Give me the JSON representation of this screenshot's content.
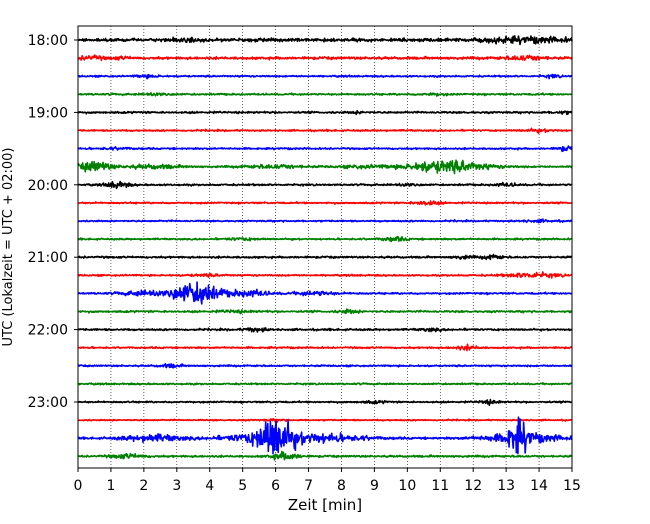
{
  "chart_data": {
    "type": "line",
    "chart_kind": "helicorder",
    "xlabel": "Zeit  [min]",
    "ylabel": "UTC (Lokalzeit = UTC + 02:00)",
    "xlim": [
      0,
      15
    ],
    "x_ticks": [
      0,
      1,
      2,
      3,
      4,
      5,
      6,
      7,
      8,
      9,
      10,
      11,
      12,
      13,
      14,
      15
    ],
    "y_tick_labels": [
      "18:00",
      "19:00",
      "20:00",
      "21:00",
      "22:00",
      "23:00"
    ],
    "y_range": [
      "18:00",
      "24:00"
    ],
    "trace_interval_min": 15,
    "trace_color_cycle": [
      "#000000",
      "#ff0000",
      "#0000ff",
      "#008000"
    ],
    "vertical_gridlines": "dotted, every minute",
    "traces": [
      {
        "start": "18:00",
        "color": "black",
        "base_amp": 0.24,
        "events": [
          {
            "t": 13.6,
            "amp": 0.35,
            "width": 1.4
          },
          {
            "t": 3.3,
            "amp": 0.12,
            "width": 0.5
          }
        ]
      },
      {
        "start": "18:15",
        "color": "red",
        "base_amp": 0.18,
        "events": [
          {
            "t": 0.4,
            "amp": 0.28,
            "width": 0.35
          },
          {
            "t": 13.6,
            "amp": 0.3,
            "width": 0.6
          },
          {
            "t": 1.3,
            "amp": 0.15,
            "width": 0.3
          }
        ]
      },
      {
        "start": "18:30",
        "color": "blue",
        "base_amp": 0.12,
        "events": [
          {
            "t": 2.1,
            "amp": 0.2,
            "width": 0.35
          },
          {
            "t": 14.4,
            "amp": 0.2,
            "width": 0.25
          }
        ]
      },
      {
        "start": "18:45",
        "color": "green",
        "base_amp": 0.13,
        "events": [
          {
            "t": 2.4,
            "amp": 0.25,
            "width": 0.35
          },
          {
            "t": 10.8,
            "amp": 0.15,
            "width": 0.4
          }
        ]
      },
      {
        "start": "19:00",
        "color": "black",
        "base_amp": 0.14,
        "events": [
          {
            "t": 14.7,
            "amp": 0.2,
            "width": 0.3
          },
          {
            "t": 8.5,
            "amp": 0.12,
            "width": 0.3
          }
        ]
      },
      {
        "start": "19:15",
        "color": "red",
        "base_amp": 0.12,
        "events": [
          {
            "t": 14.0,
            "amp": 0.2,
            "width": 0.5
          }
        ]
      },
      {
        "start": "19:30",
        "color": "blue",
        "base_amp": 0.12,
        "events": [
          {
            "t": 14.8,
            "amp": 0.35,
            "width": 0.25
          },
          {
            "t": 1.2,
            "amp": 0.12,
            "width": 0.5
          }
        ]
      },
      {
        "start": "19:45",
        "color": "green",
        "base_amp": 0.13,
        "events": [
          {
            "t": 0.5,
            "amp": 0.75,
            "width": 0.5
          },
          {
            "t": 2.3,
            "amp": 0.3,
            "width": 0.8
          },
          {
            "t": 6.0,
            "amp": 0.25,
            "width": 0.9
          },
          {
            "t": 8.7,
            "amp": 0.2,
            "width": 0.7
          },
          {
            "t": 11.2,
            "amp": 0.95,
            "width": 1.2
          }
        ]
      },
      {
        "start": "20:00",
        "color": "black",
        "base_amp": 0.13,
        "events": [
          {
            "t": 1.2,
            "amp": 0.45,
            "width": 0.35
          },
          {
            "t": 10.0,
            "amp": 0.25,
            "width": 0.3
          },
          {
            "t": 13.0,
            "amp": 0.2,
            "width": 0.4
          }
        ]
      },
      {
        "start": "20:15",
        "color": "red",
        "base_amp": 0.12,
        "events": [
          {
            "t": 10.6,
            "amp": 0.3,
            "width": 0.4
          }
        ]
      },
      {
        "start": "20:30",
        "color": "blue",
        "base_amp": 0.12,
        "events": [
          {
            "t": 14.0,
            "amp": 0.15,
            "width": 0.5
          }
        ]
      },
      {
        "start": "20:45",
        "color": "green",
        "base_amp": 0.12,
        "events": [
          {
            "t": 9.6,
            "amp": 0.3,
            "width": 0.4
          },
          {
            "t": 5.0,
            "amp": 0.15,
            "width": 0.5
          }
        ]
      },
      {
        "start": "21:00",
        "color": "black",
        "base_amp": 0.14,
        "events": [
          {
            "t": 11.7,
            "amp": 0.2,
            "width": 0.3
          },
          {
            "t": 12.6,
            "amp": 0.3,
            "width": 0.3
          }
        ]
      },
      {
        "start": "21:15",
        "color": "red",
        "base_amp": 0.12,
        "events": [
          {
            "t": 3.9,
            "amp": 0.15,
            "width": 0.5
          },
          {
            "t": 13.8,
            "amp": 0.35,
            "width": 0.8
          }
        ]
      },
      {
        "start": "21:30",
        "color": "blue",
        "base_amp": 0.13,
        "events": [
          {
            "t": 3.6,
            "amp": 1.75,
            "width": 0.7
          },
          {
            "t": 2.2,
            "amp": 0.4,
            "width": 0.8
          },
          {
            "t": 5.2,
            "amp": 0.5,
            "width": 0.6
          },
          {
            "t": 7.2,
            "amp": 0.3,
            "width": 0.6
          }
        ]
      },
      {
        "start": "21:45",
        "color": "green",
        "base_amp": 0.14,
        "events": [
          {
            "t": 8.2,
            "amp": 0.25,
            "width": 0.3
          },
          {
            "t": 4.8,
            "amp": 0.15,
            "width": 0.5
          }
        ]
      },
      {
        "start": "22:00",
        "color": "black",
        "base_amp": 0.14,
        "events": [
          {
            "t": 5.4,
            "amp": 0.3,
            "width": 0.35
          },
          {
            "t": 10.7,
            "amp": 0.2,
            "width": 0.35
          }
        ]
      },
      {
        "start": "22:15",
        "color": "red",
        "base_amp": 0.12,
        "events": [
          {
            "t": 11.8,
            "amp": 0.3,
            "width": 0.35
          }
        ]
      },
      {
        "start": "22:30",
        "color": "blue",
        "base_amp": 0.12,
        "events": [
          {
            "t": 2.8,
            "amp": 0.25,
            "width": 0.35
          }
        ]
      },
      {
        "start": "22:45",
        "color": "green",
        "base_amp": 0.12,
        "events": []
      },
      {
        "start": "23:00",
        "color": "black",
        "base_amp": 0.12,
        "events": [
          {
            "t": 12.5,
            "amp": 0.3,
            "width": 0.3
          },
          {
            "t": 9.0,
            "amp": 0.15,
            "width": 0.4
          }
        ]
      },
      {
        "start": "23:15",
        "color": "red",
        "base_amp": 0.1,
        "events": [
          {
            "t": 6.0,
            "amp": 0.15,
            "width": 0.3
          }
        ]
      },
      {
        "start": "23:30",
        "color": "blue",
        "base_amp": 0.14,
        "events": [
          {
            "t": 5.95,
            "amp": 2.9,
            "width": 0.45
          },
          {
            "t": 6.2,
            "amp": 1.0,
            "width": 1.5
          },
          {
            "t": 13.35,
            "amp": 2.2,
            "width": 0.3
          },
          {
            "t": 13.5,
            "amp": 0.7,
            "width": 1.2
          },
          {
            "t": 2.3,
            "amp": 0.55,
            "width": 0.9
          },
          {
            "t": 8.0,
            "amp": 0.25,
            "width": 1.2
          }
        ]
      },
      {
        "start": "23:45",
        "color": "green",
        "base_amp": 0.14,
        "events": [
          {
            "t": 1.5,
            "amp": 0.3,
            "width": 0.5
          },
          {
            "t": 6.3,
            "amp": 0.55,
            "width": 0.4
          }
        ]
      }
    ]
  }
}
